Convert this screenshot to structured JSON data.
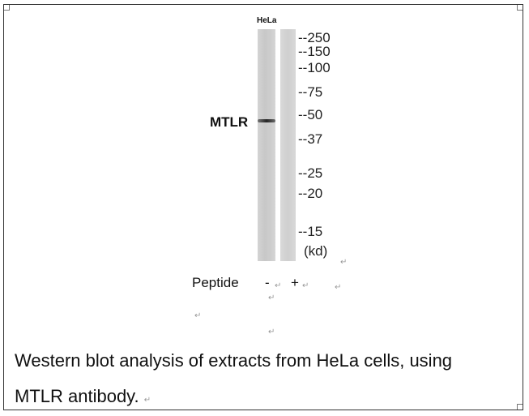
{
  "lane_label": "HeLa",
  "target_label": "MTLR",
  "markers": [
    "--250",
    "--150",
    "--100",
    "--75",
    "--50",
    "--37",
    "--25",
    "--20",
    "--15"
  ],
  "unit_label": "(kd)",
  "peptide": {
    "label": "Peptide",
    "minus": "-",
    "plus": "+"
  },
  "para_mark": "↵",
  "caption": {
    "line1": "Western blot analysis of extracts from HeLa cells, using",
    "line2": "MTLR antibody."
  }
}
